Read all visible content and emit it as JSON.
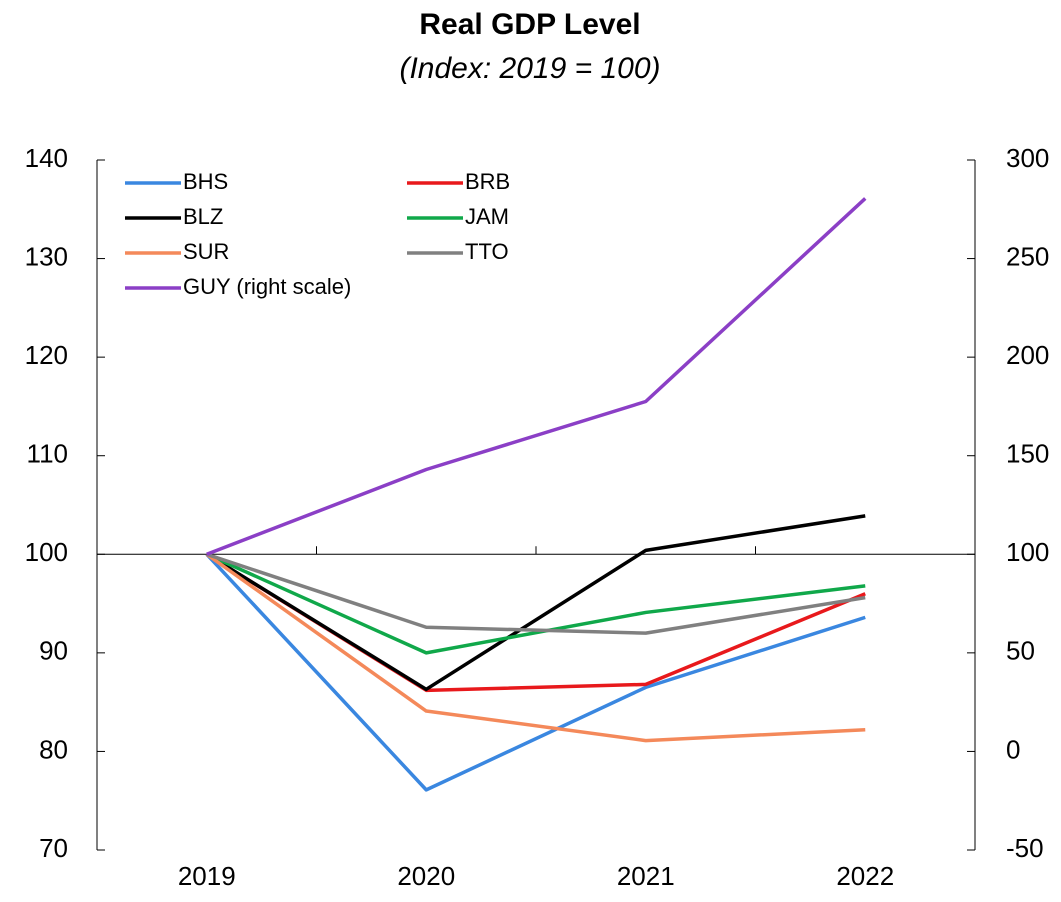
{
  "chart_data": {
    "type": "line",
    "title": "Real GDP Level",
    "subtitle": "(Index: 2019 = 100)",
    "categories": [
      "2019",
      "2020",
      "2021",
      "2022"
    ],
    "series": [
      {
        "name": "BHS",
        "color": "#3a87e0",
        "values": [
          100,
          76.1,
          86.5,
          93.6
        ]
      },
      {
        "name": "BRB",
        "color": "#e8191c",
        "values": [
          100,
          86.2,
          86.8,
          96.0
        ]
      },
      {
        "name": "BLZ",
        "color": "#000000",
        "values": [
          100,
          86.3,
          100.4,
          103.9
        ]
      },
      {
        "name": "JAM",
        "color": "#10a84a",
        "values": [
          100,
          90.0,
          94.1,
          96.8
        ]
      },
      {
        "name": "SUR",
        "color": "#f4895a",
        "values": [
          100,
          84.1,
          81.1,
          82.2
        ]
      },
      {
        "name": "TTO",
        "color": "#808080",
        "values": [
          100,
          92.6,
          92.0,
          95.6
        ]
      },
      {
        "name": "GUY (right scale)",
        "color": "#8b3fc6",
        "axis": "y2",
        "values": [
          100,
          143,
          177.5,
          280.5
        ]
      }
    ],
    "ylim": [
      70,
      140
    ],
    "yticks": [
      70,
      80,
      90,
      100,
      110,
      120,
      130,
      140
    ],
    "y2lim": [
      -50,
      300
    ],
    "y2ticks": [
      -50,
      0,
      50,
      100,
      150,
      200,
      250,
      300
    ],
    "x_axis_crossing": 100,
    "legend": "upper left",
    "grid": false
  }
}
